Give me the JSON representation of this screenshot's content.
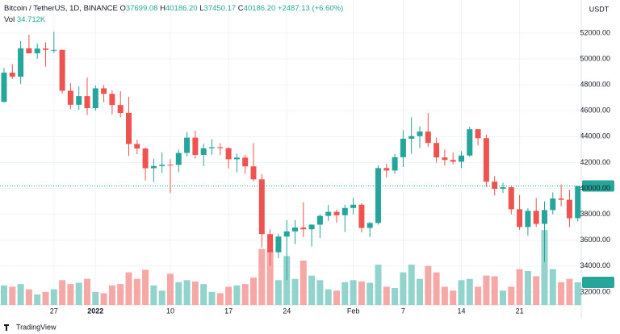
{
  "chart_data": {
    "type": "candlestick",
    "title": "Bitcoin / TetherUS, 1D, BINANCE",
    "legend_fields": [
      {
        "key": "O",
        "value": "37699.08"
      },
      {
        "key": "H",
        "value": "40186.20"
      },
      {
        "key": "L",
        "value": "37450.17"
      },
      {
        "key": "C",
        "value": "40186.20"
      }
    ],
    "change_label": "+2487.13 (+6.60%)",
    "volume_title": "Vol",
    "volume_label": "34.712K",
    "last_price_label": "40186.20",
    "currency": "USDT",
    "footer": "TradingView",
    "up_color": "#26a69a",
    "down_color": "#ef5350",
    "volume_up_color": "#92d3cd",
    "volume_down_color": "#f6a8a6",
    "categories": [
      null,
      null,
      null,
      null,
      null,
      null,
      "27",
      null,
      null,
      null,
      null,
      "2022",
      null,
      null,
      null,
      null,
      null,
      null,
      null,
      null,
      "10",
      null,
      null,
      null,
      null,
      null,
      null,
      "17",
      null,
      null,
      null,
      null,
      null,
      null,
      "24",
      null,
      null,
      null,
      null,
      null,
      null,
      null,
      "Feb",
      null,
      null,
      null,
      null,
      null,
      "7",
      null,
      null,
      null,
      null,
      null,
      null,
      "14",
      null,
      null,
      null,
      null,
      null,
      null,
      "21",
      null,
      null,
      null,
      null,
      null,
      null,
      null
    ],
    "open": [
      46680,
      48940,
      48630,
      50820,
      50430,
      50800,
      50700,
      50700,
      47540,
      46460,
      47130,
      46200,
      47730,
      47300,
      46440,
      45830,
      43430,
      43080,
      41560,
      41730,
      41830,
      41820,
      42740,
      43920,
      42590,
      43100,
      43180,
      43110,
      42250,
      42380,
      41700,
      40700,
      36470,
      35070,
      36280,
      36680,
      36980,
      36840,
      37200,
      37880,
      38190,
      37930,
      38490,
      38740,
      36950,
      37330,
      41570,
      41380,
      42410,
      43840,
      44040,
      44390,
      43510,
      42390,
      42200,
      42060,
      42540,
      44570,
      43880,
      40520,
      39970,
      40090,
      38390,
      37020,
      38270,
      37260,
      38330,
      39220,
      39120,
      37699.08
    ],
    "high": [
      49300,
      49580,
      51380,
      51870,
      51180,
      51280,
      52090,
      50720,
      48120,
      47890,
      48550,
      47950,
      47990,
      47570,
      47510,
      47070,
      43750,
      43150,
      42300,
      42790,
      42250,
      43000,
      44350,
      44460,
      43460,
      43800,
      43480,
      43180,
      42690,
      42580,
      43500,
      41100,
      36840,
      36500,
      37550,
      37550,
      38920,
      37230,
      38000,
      38720,
      38360,
      38740,
      39270,
      38850,
      37400,
      41770,
      41910,
      42660,
      44500,
      45500,
      44800,
      45820,
      43920,
      43000,
      42760,
      42880,
      44770,
      44580,
      44160,
      40960,
      40450,
      40140,
      39490,
      38470,
      39260,
      39000,
      39700,
      40300,
      39900,
      40186.2
    ],
    "low": [
      46630,
      48450,
      48060,
      50420,
      50020,
      49400,
      50450,
      47320,
      46100,
      46060,
      45680,
      46000,
      46650,
      45700,
      45500,
      42500,
      42650,
      40610,
      40500,
      41200,
      39650,
      41260,
      42450,
      42310,
      41720,
      42600,
      42580,
      41540,
      41250,
      41140,
      40550,
      35440,
      34010,
      34620,
      32920,
      35700,
      36250,
      35510,
      36160,
      37500,
      37350,
      36630,
      38000,
      36600,
      36250,
      37200,
      40850,
      41120,
      41650,
      42670,
      43120,
      43200,
      42000,
      41750,
      41870,
      41570,
      42430,
      43320,
      40100,
      39450,
      39650,
      38000,
      36800,
      36350,
      37030,
      34320,
      38000,
      38620,
      37000,
      37450.17
    ],
    "close": [
      48940,
      48630,
      50820,
      50430,
      50800,
      50700,
      50700,
      47540,
      46460,
      47130,
      46200,
      47730,
      47300,
      46440,
      45830,
      43430,
      43080,
      41560,
      41730,
      41830,
      41820,
      42740,
      43920,
      42590,
      43100,
      43180,
      43110,
      42250,
      42380,
      41700,
      40700,
      36470,
      35070,
      36280,
      36680,
      36980,
      36840,
      37200,
      37880,
      38190,
      37930,
      38490,
      38740,
      36950,
      37330,
      41570,
      41380,
      42410,
      43840,
      44040,
      44390,
      43510,
      42390,
      42200,
      42060,
      42540,
      44570,
      43880,
      40520,
      39970,
      40090,
      38390,
      37020,
      38270,
      37260,
      38330,
      39220,
      39120,
      37700,
      40186.2
    ],
    "volume": [
      30,
      28,
      32,
      24,
      16,
      20,
      24,
      38,
      32,
      34,
      40,
      20,
      18,
      30,
      32,
      50,
      40,
      54,
      30,
      22,
      48,
      35,
      38,
      36,
      32,
      20,
      18,
      28,
      30,
      32,
      42,
      86,
      85,
      38,
      75,
      40,
      68,
      45,
      38,
      24,
      22,
      35,
      38,
      36,
      34,
      62,
      28,
      26,
      50,
      62,
      40,
      60,
      50,
      28,
      22,
      38,
      40,
      28,
      45,
      44,
      22,
      28,
      55,
      52,
      44,
      115,
      55,
      35,
      40,
      34.712
    ],
    "ylim": [
      31000,
      54550
    ],
    "yticks": [
      {
        "value": 32000,
        "label": "32000.00"
      },
      {
        "value": 34000,
        "label": "34000.00"
      },
      {
        "value": 36000,
        "label": "36000.00"
      },
      {
        "value": 38000,
        "label": "38000.00"
      },
      {
        "value": 40000,
        "label": "40000.00"
      },
      {
        "value": 42000,
        "label": "42000.00"
      },
      {
        "value": 44000,
        "label": "44000.00"
      },
      {
        "value": 46000,
        "label": "46000.00"
      },
      {
        "value": 48000,
        "label": "48000.00"
      },
      {
        "value": 50000,
        "label": "50000.00"
      },
      {
        "value": 52000,
        "label": "52000.00"
      }
    ],
    "volume_ylim": [
      0,
      130
    ],
    "grid": true
  }
}
